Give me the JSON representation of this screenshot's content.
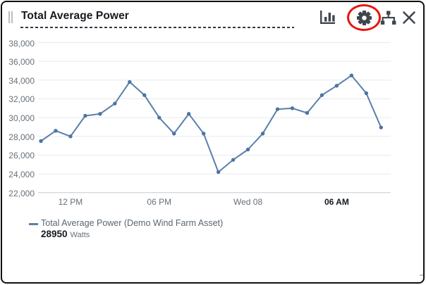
{
  "window": {
    "title": "Total Average Power",
    "toolbar": {
      "bar_chart_icon": "bar-chart-visualization",
      "settings_icon": "gear-settings",
      "tree_icon": "asset-hierarchy",
      "close_icon": "close"
    },
    "annotation": {
      "shape": "red-ellipse-highlight",
      "color": "#e8150c",
      "target": "settings-icon"
    }
  },
  "legend": {
    "series_label": "Total Average Power (Demo Wind Farm Asset)",
    "value": "28950",
    "unit": "Watts"
  },
  "chart_data": {
    "type": "line",
    "title": "Total Average Power",
    "series": [
      {
        "name": "Total Average Power (Demo Wind Farm Asset)",
        "unit": "Watts",
        "color": "#5a7fab",
        "point_color": "#4c74a3",
        "values": [
          27500,
          28600,
          28000,
          30200,
          30400,
          31500,
          33800,
          32400,
          30000,
          28300,
          30400,
          28300,
          24200,
          25500,
          26600,
          28300,
          30900,
          31000,
          30500,
          32400,
          33400,
          34500,
          32600,
          28950
        ],
        "latest_value": 28950
      }
    ],
    "x_interval": "hourly",
    "x_ticks": [
      {
        "label": "12 PM",
        "index": 2,
        "bold": false
      },
      {
        "label": "06 PM",
        "index": 8,
        "bold": false
      },
      {
        "label": "Wed 08",
        "index": 14,
        "bold": false
      },
      {
        "label": "06 AM",
        "index": 20,
        "bold": true
      }
    ],
    "y_ticks": [
      {
        "label": "38,000",
        "value": 38000
      },
      {
        "label": "36,000",
        "value": 36000
      },
      {
        "label": "34,000",
        "value": 34000
      },
      {
        "label": "32,000",
        "value": 32000
      },
      {
        "label": "30,000",
        "value": 30000
      },
      {
        "label": "28,000",
        "value": 28000
      },
      {
        "label": "26,000",
        "value": 26000
      },
      {
        "label": "24,000",
        "value": 24000
      },
      {
        "label": "22,000",
        "value": 22000
      }
    ],
    "ylim": [
      22000,
      38000
    ],
    "grid": true,
    "gridline_color": "#e8eaed",
    "axisline_color": "#c6ccd2",
    "legend_position": "bottom"
  }
}
